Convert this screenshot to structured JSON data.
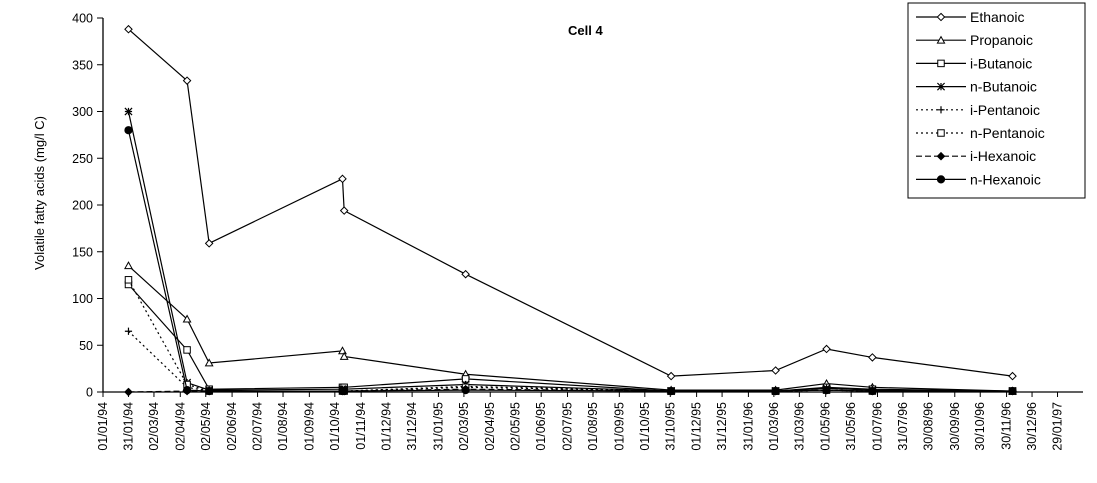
{
  "chart_data": {
    "type": "line",
    "title": "Cell 4",
    "xlabel": "",
    "ylabel": "Volatile fatty acids (mg/l C)",
    "ylim": [
      0,
      400
    ],
    "yticks": [
      "0",
      "50",
      "100",
      "150",
      "200",
      "250",
      "300",
      "350",
      "400"
    ],
    "x_tick_labels": [
      "01/01/94",
      "31/01/94",
      "02/03/94",
      "02/04/94",
      "02/05/94",
      "02/06/94",
      "02/07/94",
      "01/08/94",
      "01/09/94",
      "01/10/94",
      "01/11/94",
      "01/12/94",
      "31/12/94",
      "31/01/95",
      "02/03/95",
      "02/04/95",
      "02/05/95",
      "01/06/95",
      "02/07/95",
      "01/08/95",
      "01/09/95",
      "01/10/95",
      "31/10/95",
      "01/12/95",
      "31/12/95",
      "31/01/96",
      "01/03/96",
      "31/03/96",
      "01/05/96",
      "31/05/96",
      "01/07/96",
      "31/07/96",
      "30/08/96",
      "30/09/96",
      "30/10/96",
      "30/11/96",
      "30/12/96",
      "29/01/97"
    ],
    "grid": false,
    "legend_position": "top-right",
    "series": [
      {
        "name": "Ethanoic",
        "marker": "diamond",
        "dash": "solid",
        "points": [
          [
            "1994-01-31",
            388
          ],
          [
            "1994-04-10",
            333
          ],
          [
            "1994-05-06",
            159
          ],
          [
            "1994-10-10",
            228
          ],
          [
            "1994-10-12",
            194
          ],
          [
            "1995-03-04",
            126
          ],
          [
            "1995-11-01",
            17
          ],
          [
            "1996-03-03",
            23
          ],
          [
            "1996-05-02",
            46
          ],
          [
            "1996-06-25",
            37
          ],
          [
            "1996-12-07",
            17
          ]
        ]
      },
      {
        "name": "Propanoic",
        "marker": "triangle",
        "dash": "solid",
        "points": [
          [
            "1994-01-31",
            135
          ],
          [
            "1994-04-10",
            78
          ],
          [
            "1994-05-06",
            31
          ],
          [
            "1994-10-10",
            44
          ],
          [
            "1994-10-12",
            38
          ],
          [
            "1995-03-04",
            19
          ],
          [
            "1995-11-01",
            2
          ],
          [
            "1996-03-03",
            2
          ],
          [
            "1996-05-02",
            9
          ],
          [
            "1996-06-25",
            5
          ],
          [
            "1996-12-07",
            1
          ]
        ]
      },
      {
        "name": "i-Butanoic",
        "marker": "square",
        "dash": "solid",
        "points": [
          [
            "1994-01-31",
            115
          ],
          [
            "1994-04-10",
            45
          ],
          [
            "1994-05-06",
            3
          ],
          [
            "1994-10-10",
            5
          ],
          [
            "1994-10-12",
            5
          ],
          [
            "1995-03-04",
            14
          ],
          [
            "1995-11-01",
            1
          ],
          [
            "1996-03-03",
            1
          ],
          [
            "1996-05-02",
            5
          ],
          [
            "1996-06-25",
            3
          ],
          [
            "1996-12-07",
            1
          ]
        ]
      },
      {
        "name": "n-Butanoic",
        "marker": "star",
        "dash": "solid",
        "points": [
          [
            "1994-01-31",
            300
          ],
          [
            "1994-04-10",
            10
          ],
          [
            "1994-05-06",
            2
          ],
          [
            "1994-10-10",
            3
          ],
          [
            "1994-10-12",
            3
          ],
          [
            "1995-03-04",
            8
          ],
          [
            "1995-11-01",
            1
          ],
          [
            "1996-03-03",
            1
          ],
          [
            "1996-05-02",
            4
          ],
          [
            "1996-06-25",
            2
          ],
          [
            "1996-12-07",
            1
          ]
        ]
      },
      {
        "name": "i-Pentanoic",
        "marker": "plus",
        "dash": "dotted",
        "points": [
          [
            "1994-01-31",
            65
          ],
          [
            "1994-04-10",
            5
          ],
          [
            "1994-05-06",
            1
          ],
          [
            "1994-10-10",
            1
          ],
          [
            "1994-10-12",
            1
          ],
          [
            "1995-03-04",
            6
          ],
          [
            "1995-11-01",
            1
          ],
          [
            "1996-03-03",
            1
          ],
          [
            "1996-05-02",
            2
          ],
          [
            "1996-06-25",
            1
          ],
          [
            "1996-12-07",
            1
          ]
        ]
      },
      {
        "name": "n-Pentanoic",
        "marker": "square",
        "dash": "dotted",
        "points": [
          [
            "1994-01-31",
            120
          ],
          [
            "1994-04-10",
            8
          ],
          [
            "1994-05-06",
            1
          ],
          [
            "1994-10-10",
            1
          ],
          [
            "1994-10-12",
            1
          ],
          [
            "1995-03-04",
            5
          ],
          [
            "1995-11-01",
            1
          ],
          [
            "1996-03-03",
            1
          ],
          [
            "1996-05-02",
            2
          ],
          [
            "1996-06-25",
            1
          ],
          [
            "1996-12-07",
            1
          ]
        ]
      },
      {
        "name": "i-Hexanoic",
        "marker": "filled-diamond",
        "dash": "dashed",
        "points": [
          [
            "1994-01-31",
            0
          ],
          [
            "1994-04-10",
            1
          ],
          [
            "1994-05-06",
            1
          ],
          [
            "1994-10-10",
            1
          ],
          [
            "1994-10-12",
            1
          ],
          [
            "1995-03-04",
            3
          ],
          [
            "1995-11-01",
            1
          ],
          [
            "1996-03-03",
            1
          ],
          [
            "1996-05-02",
            2
          ],
          [
            "1996-06-25",
            1
          ],
          [
            "1996-12-07",
            1
          ]
        ]
      },
      {
        "name": "n-Hexanoic",
        "marker": "filled-circle",
        "dash": "solid",
        "points": [
          [
            "1994-01-31",
            280
          ],
          [
            "1994-04-10",
            2
          ],
          [
            "1994-05-06",
            1
          ],
          [
            "1994-10-10",
            1
          ],
          [
            "1994-10-12",
            1
          ],
          [
            "1995-03-04",
            2
          ],
          [
            "1995-11-01",
            1
          ],
          [
            "1996-03-03",
            1
          ],
          [
            "1996-05-02",
            2
          ],
          [
            "1996-06-25",
            1
          ],
          [
            "1996-12-07",
            1
          ]
        ]
      }
    ]
  },
  "colors": {
    "line": "#000000",
    "background": "#ffffff"
  }
}
